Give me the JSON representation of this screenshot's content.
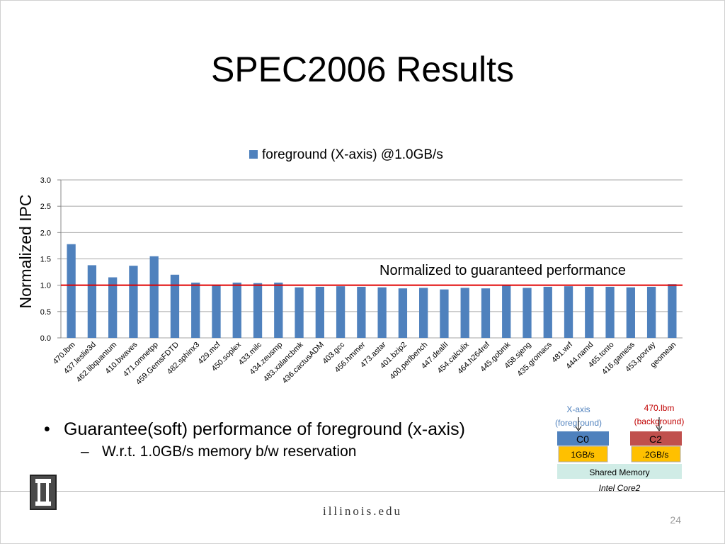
{
  "slide": {
    "title": "SPEC2006 Results",
    "page_number": "24",
    "footer_site": "illinois.edu"
  },
  "chart_data": {
    "type": "bar",
    "title": "",
    "ylabel": "Normalized IPC",
    "xlabel": "",
    "ylim": [
      0,
      3
    ],
    "yticks": [
      "0.0",
      "0.5",
      "1.0",
      "1.5",
      "2.0",
      "2.5",
      "3.0"
    ],
    "grid": true,
    "legend_position": "top",
    "colors": {
      "bar": "#4f81bd",
      "reference_line": "#e00000",
      "grid": "#a6a6a6"
    },
    "categories": [
      "470.lbm",
      "437.leslie3d",
      "462.libquantum",
      "410.bwaves",
      "471.omnetpp",
      "459.GemsFDTD",
      "482.sphinx3",
      "429.mcf",
      "450.soplex",
      "433.milc",
      "434.zeusmp",
      "483.xalancbmk",
      "436.cactusADM",
      "403.gcc",
      "456.hmmer",
      "473.astar",
      "401.bzip2",
      "400.perlbench",
      "447.dealII",
      "454.calculix",
      "464.h264ref",
      "445.gobmk",
      "458.sjeng",
      "435.gromacs",
      "481.wrf",
      "444.namd",
      "465.tonto",
      "416.gamess",
      "453.povray",
      "geomean"
    ],
    "series": [
      {
        "name": "foreground (X-axis) @1.0GB/s",
        "values": [
          1.78,
          1.38,
          1.15,
          1.37,
          1.55,
          1.2,
          1.05,
          1.01,
          1.05,
          1.04,
          1.05,
          0.96,
          0.97,
          0.98,
          0.97,
          0.96,
          0.94,
          0.95,
          0.92,
          0.95,
          0.94,
          0.99,
          0.95,
          0.97,
          0.98,
          0.97,
          0.97,
          0.96,
          0.97,
          1.02
        ]
      }
    ],
    "reference_line": {
      "value": 1.0,
      "label": "Normalized to guaranteed performance"
    }
  },
  "bullets": {
    "main": "Guarantee(soft) performance of foreground (x-axis)",
    "sub": "W.r.t. 1.0GB/s memory b/w reservation"
  },
  "diagram": {
    "left_label_line1": "X-axis",
    "left_label_line2": "(foreground)",
    "right_label_line1": "470.lbm",
    "right_label_line2": "(background)",
    "core_left": "C0",
    "core_right": "C2",
    "bw_left": "1GB/s",
    "bw_right": ".2GB/s",
    "shared": "Shared Memory",
    "platform": "Intel Core2",
    "colors": {
      "label_left": "#4f81bd",
      "label_right": "#c00000",
      "core_left": "#4f81bd",
      "core_right": "#c0504d",
      "bw_box": "#ffc000",
      "shared": "#d0ece6"
    }
  }
}
